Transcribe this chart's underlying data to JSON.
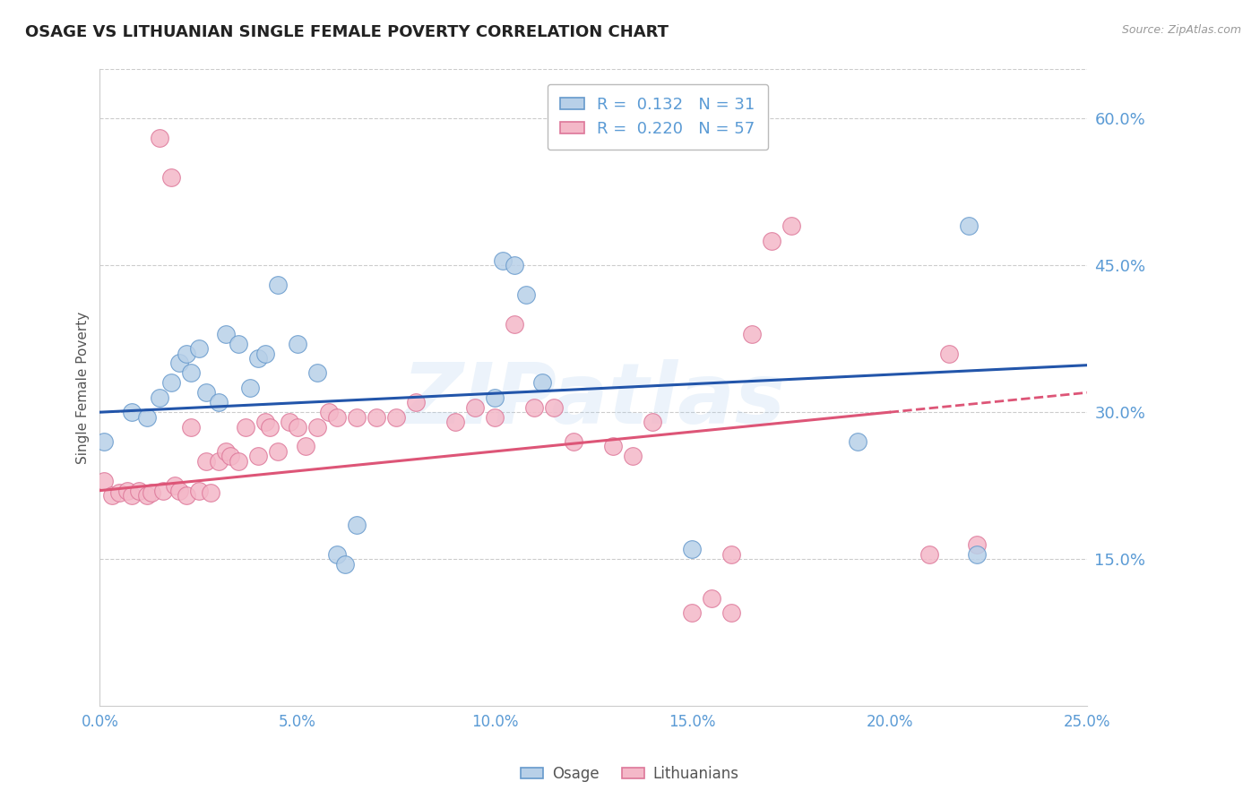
{
  "title": "OSAGE VS LITHUANIAN SINGLE FEMALE POVERTY CORRELATION CHART",
  "source": "Source: ZipAtlas.com",
  "xlabel": "",
  "ylabel": "Single Female Poverty",
  "x_min": 0.0,
  "x_max": 0.25,
  "y_min": 0.0,
  "y_max": 0.65,
  "x_ticks": [
    0.0,
    0.05,
    0.1,
    0.15,
    0.2,
    0.25
  ],
  "x_tick_labels": [
    "0.0%",
    "5.0%",
    "10.0%",
    "15.0%",
    "20.0%",
    "25.0%"
  ],
  "y_ticks": [
    0.15,
    0.3,
    0.45,
    0.6
  ],
  "y_tick_labels": [
    "15.0%",
    "30.0%",
    "45.0%",
    "60.0%"
  ],
  "gridline_color": "#cccccc",
  "background_color": "#ffffff",
  "osage_color": "#b8d0e8",
  "osage_edge_color": "#6699cc",
  "lithuanian_color": "#f4b8c8",
  "lithuanian_edge_color": "#dd7799",
  "osage_line_color": "#2255aa",
  "lithuanian_line_color": "#dd5577",
  "watermark": "ZIPatlas",
  "osage_trendline": [
    0.3,
    0.348
  ],
  "lith_trendline": [
    0.22,
    0.32
  ],
  "osage_x": [
    0.001,
    0.008,
    0.012,
    0.015,
    0.018,
    0.02,
    0.022,
    0.023,
    0.025,
    0.027,
    0.03,
    0.032,
    0.035,
    0.038,
    0.04,
    0.042,
    0.045,
    0.05,
    0.055,
    0.06,
    0.062,
    0.065,
    0.1,
    0.102,
    0.105,
    0.108,
    0.112,
    0.15,
    0.192,
    0.22,
    0.222
  ],
  "osage_y": [
    0.27,
    0.3,
    0.295,
    0.315,
    0.33,
    0.35,
    0.36,
    0.34,
    0.365,
    0.32,
    0.31,
    0.38,
    0.37,
    0.325,
    0.355,
    0.36,
    0.43,
    0.37,
    0.34,
    0.155,
    0.145,
    0.185,
    0.315,
    0.455,
    0.45,
    0.42,
    0.33,
    0.16,
    0.27,
    0.49,
    0.155
  ],
  "lith_x": [
    0.001,
    0.003,
    0.005,
    0.007,
    0.008,
    0.01,
    0.012,
    0.013,
    0.015,
    0.016,
    0.018,
    0.019,
    0.02,
    0.022,
    0.023,
    0.025,
    0.027,
    0.028,
    0.03,
    0.032,
    0.033,
    0.035,
    0.037,
    0.04,
    0.042,
    0.043,
    0.045,
    0.048,
    0.05,
    0.052,
    0.055,
    0.058,
    0.06,
    0.065,
    0.07,
    0.075,
    0.08,
    0.09,
    0.095,
    0.1,
    0.105,
    0.11,
    0.115,
    0.12,
    0.13,
    0.135,
    0.14,
    0.15,
    0.155,
    0.16,
    0.165,
    0.17,
    0.175,
    0.16,
    0.21,
    0.215,
    0.222
  ],
  "lith_y": [
    0.23,
    0.215,
    0.218,
    0.22,
    0.215,
    0.22,
    0.215,
    0.218,
    0.58,
    0.22,
    0.54,
    0.225,
    0.22,
    0.215,
    0.285,
    0.22,
    0.25,
    0.218,
    0.25,
    0.26,
    0.255,
    0.25,
    0.285,
    0.255,
    0.29,
    0.285,
    0.26,
    0.29,
    0.285,
    0.265,
    0.285,
    0.3,
    0.295,
    0.295,
    0.295,
    0.295,
    0.31,
    0.29,
    0.305,
    0.295,
    0.39,
    0.305,
    0.305,
    0.27,
    0.265,
    0.255,
    0.29,
    0.095,
    0.11,
    0.095,
    0.38,
    0.475,
    0.49,
    0.155,
    0.155,
    0.36,
    0.165
  ]
}
